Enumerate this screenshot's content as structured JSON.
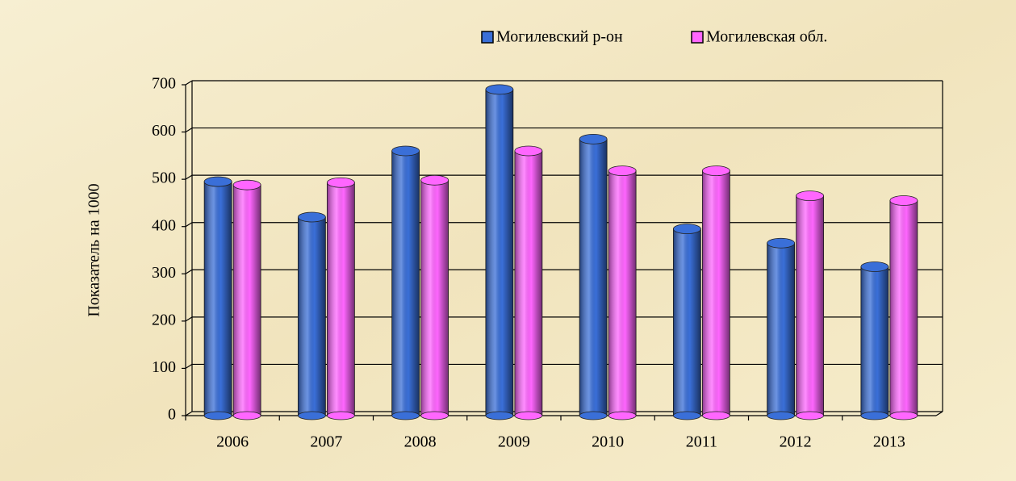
{
  "chart_data": {
    "type": "bar",
    "categories": [
      "2006",
      "2007",
      "2008",
      "2009",
      "2010",
      "2011",
      "2012",
      "2013"
    ],
    "series": [
      {
        "name": "Могилевский р-он",
        "color": "#3a6fd8",
        "values": [
          495,
          420,
          560,
          690,
          585,
          395,
          365,
          315
        ]
      },
      {
        "name": "Могилевская обл.",
        "color": "#ff66ff",
        "values": [
          488,
          493,
          498,
          560,
          518,
          518,
          465,
          455
        ]
      }
    ],
    "ylabel": "Показатель на 1000",
    "ylim": [
      0,
      700
    ],
    "yticks": [
      0,
      100,
      200,
      300,
      400,
      500,
      600,
      700
    ],
    "grid": true
  }
}
